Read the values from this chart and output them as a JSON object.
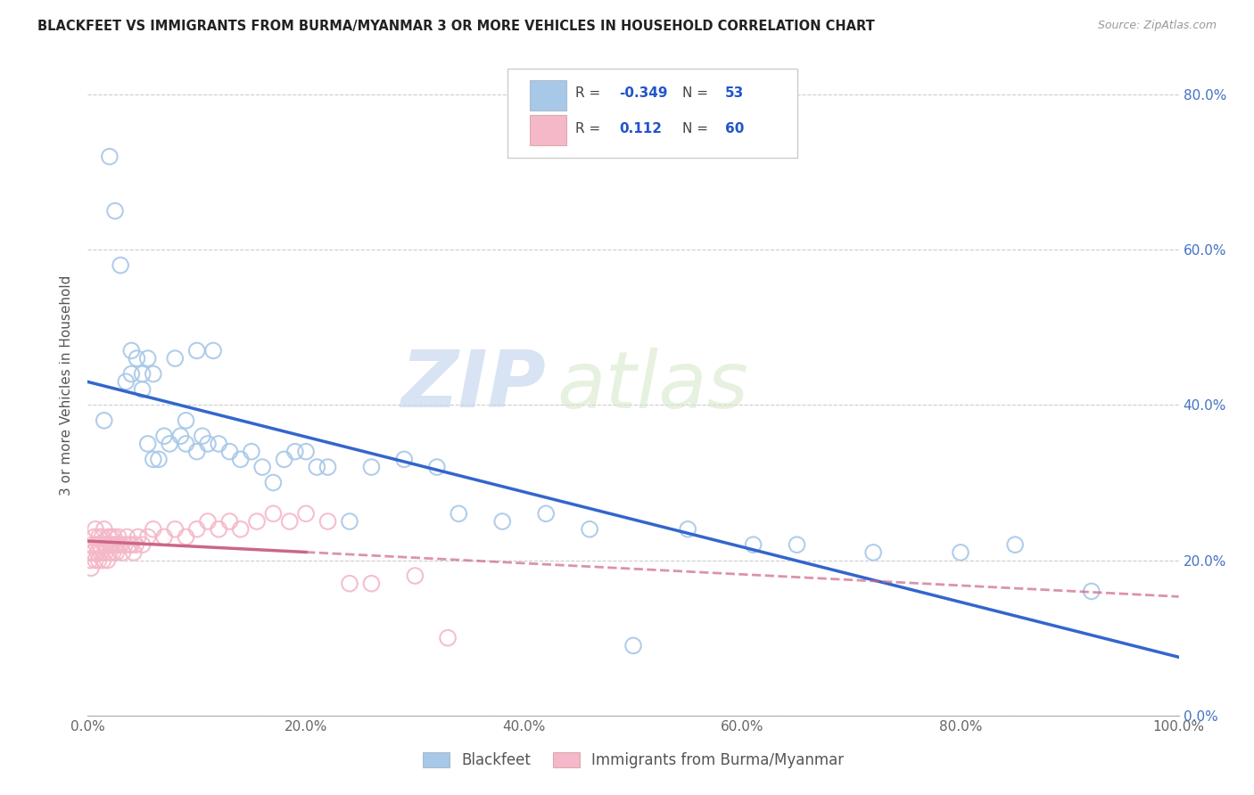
{
  "title": "BLACKFEET VS IMMIGRANTS FROM BURMA/MYANMAR 3 OR MORE VEHICLES IN HOUSEHOLD CORRELATION CHART",
  "source": "Source: ZipAtlas.com",
  "ylabel": "3 or more Vehicles in Household",
  "blue_R": -0.349,
  "blue_N": 53,
  "pink_R": 0.112,
  "pink_N": 60,
  "blue_color": "#a8c8e8",
  "pink_color": "#f4b8c8",
  "blue_line_color": "#3366cc",
  "pink_line_color": "#cc6688",
  "watermark_zip": "ZIP",
  "watermark_atlas": "atlas",
  "xmin": 0.0,
  "xmax": 1.0,
  "ymin": 0.0,
  "ymax": 0.85,
  "blue_scatter_x": [
    0.015,
    0.02,
    0.025,
    0.03,
    0.035,
    0.04,
    0.04,
    0.045,
    0.05,
    0.05,
    0.055,
    0.055,
    0.06,
    0.06,
    0.065,
    0.07,
    0.075,
    0.08,
    0.085,
    0.09,
    0.09,
    0.1,
    0.1,
    0.105,
    0.11,
    0.115,
    0.12,
    0.13,
    0.14,
    0.15,
    0.16,
    0.17,
    0.18,
    0.19,
    0.2,
    0.21,
    0.22,
    0.24,
    0.26,
    0.29,
    0.32,
    0.34,
    0.38,
    0.42,
    0.46,
    0.5,
    0.55,
    0.61,
    0.65,
    0.72,
    0.8,
    0.85,
    0.92
  ],
  "blue_scatter_y": [
    0.38,
    0.72,
    0.65,
    0.58,
    0.43,
    0.47,
    0.44,
    0.46,
    0.42,
    0.44,
    0.46,
    0.35,
    0.33,
    0.44,
    0.33,
    0.36,
    0.35,
    0.46,
    0.36,
    0.38,
    0.35,
    0.34,
    0.47,
    0.36,
    0.35,
    0.47,
    0.35,
    0.34,
    0.33,
    0.34,
    0.32,
    0.3,
    0.33,
    0.34,
    0.34,
    0.32,
    0.32,
    0.25,
    0.32,
    0.33,
    0.32,
    0.26,
    0.25,
    0.26,
    0.24,
    0.09,
    0.24,
    0.22,
    0.22,
    0.21,
    0.21,
    0.22,
    0.16
  ],
  "pink_scatter_x": [
    0.002,
    0.003,
    0.004,
    0.005,
    0.006,
    0.007,
    0.007,
    0.008,
    0.009,
    0.01,
    0.01,
    0.011,
    0.012,
    0.013,
    0.014,
    0.015,
    0.015,
    0.016,
    0.017,
    0.018,
    0.019,
    0.02,
    0.02,
    0.021,
    0.022,
    0.023,
    0.024,
    0.025,
    0.026,
    0.027,
    0.028,
    0.03,
    0.032,
    0.034,
    0.036,
    0.038,
    0.04,
    0.042,
    0.044,
    0.046,
    0.05,
    0.055,
    0.06,
    0.07,
    0.08,
    0.09,
    0.1,
    0.11,
    0.12,
    0.13,
    0.14,
    0.155,
    0.17,
    0.185,
    0.2,
    0.22,
    0.24,
    0.26,
    0.3,
    0.33
  ],
  "pink_scatter_y": [
    0.2,
    0.19,
    0.22,
    0.21,
    0.23,
    0.2,
    0.24,
    0.22,
    0.21,
    0.23,
    0.2,
    0.22,
    0.21,
    0.23,
    0.2,
    0.22,
    0.24,
    0.21,
    0.22,
    0.2,
    0.23,
    0.22,
    0.21,
    0.23,
    0.22,
    0.21,
    0.23,
    0.22,
    0.21,
    0.22,
    0.23,
    0.22,
    0.21,
    0.22,
    0.23,
    0.22,
    0.22,
    0.21,
    0.22,
    0.23,
    0.22,
    0.23,
    0.24,
    0.23,
    0.24,
    0.23,
    0.24,
    0.25,
    0.24,
    0.25,
    0.24,
    0.25,
    0.26,
    0.25,
    0.26,
    0.25,
    0.17,
    0.17,
    0.18,
    0.1
  ],
  "yticks": [
    0.0,
    0.2,
    0.4,
    0.6,
    0.8
  ],
  "ytick_labels": [
    "0.0%",
    "20.0%",
    "40.0%",
    "60.0%",
    "80.0%"
  ],
  "xticks": [
    0.0,
    0.2,
    0.4,
    0.6,
    0.8,
    1.0
  ],
  "xtick_labels": [
    "0.0%",
    "20.0%",
    "40.0%",
    "60.0%",
    "80.0%",
    "100.0%"
  ],
  "legend_blue_label": "Blackfeet",
  "legend_pink_label": "Immigrants from Burma/Myanmar",
  "figsize": [
    14.06,
    8.92
  ],
  "dpi": 100
}
